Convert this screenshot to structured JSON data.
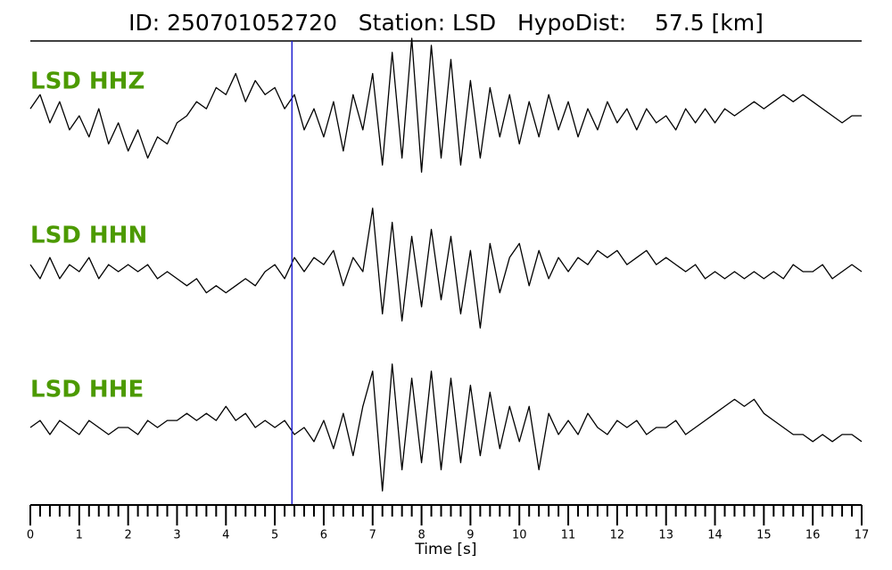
{
  "chart_data": {
    "type": "line",
    "title": "ID: 250701052720   Station: LSD   HypoDist:    57.5 [km]",
    "xlabel": "Time [s]",
    "xlim": [
      0,
      17
    ],
    "xticks": [
      0,
      1,
      2,
      3,
      4,
      5,
      6,
      7,
      8,
      9,
      10,
      11,
      12,
      13,
      14,
      15,
      16,
      17
    ],
    "minor_xticks": [
      0.2,
      0.4,
      0.6,
      0.8,
      1.2,
      1.4,
      1.6,
      1.8,
      2.2,
      2.4,
      2.6,
      2.8,
      3.2,
      3.4,
      3.6,
      3.8,
      4.2,
      4.4,
      4.6,
      4.8,
      5.2,
      5.4,
      5.6,
      5.8,
      6.2,
      6.4,
      6.6,
      6.8,
      7.2,
      7.4,
      7.6,
      7.8,
      8.2,
      8.4,
      8.6,
      8.8,
      9.2,
      9.4,
      9.6,
      9.8,
      10.2,
      10.4,
      10.6,
      10.8,
      11.2,
      11.4,
      11.6,
      11.8,
      12.2,
      12.4,
      12.6,
      12.8,
      13.2,
      13.4,
      13.6,
      13.8,
      14.2,
      14.4,
      14.6,
      14.8,
      15.2,
      15.4,
      15.6,
      15.8,
      16.2,
      16.4,
      16.6,
      16.8
    ],
    "ylim": [
      -1.1,
      1.1
    ],
    "label_color": "#4c9a00",
    "marker": {
      "value": 5.35,
      "color": "#1f1fd0"
    },
    "x": [
      0,
      0.2,
      0.4,
      0.6,
      0.8,
      1,
      1.2,
      1.4,
      1.6,
      1.8,
      2,
      2.2,
      2.4,
      2.6,
      2.8,
      3,
      3.2,
      3.4,
      3.6,
      3.8,
      4,
      4.2,
      4.4,
      4.6,
      4.8,
      5,
      5.2,
      5.4,
      5.6,
      5.8,
      6,
      6.2,
      6.4,
      6.6,
      6.8,
      7,
      7.2,
      7.4,
      7.6,
      7.8,
      8,
      8.2,
      8.4,
      8.6,
      8.8,
      9,
      9.2,
      9.4,
      9.6,
      9.8,
      10,
      10.2,
      10.4,
      10.6,
      10.8,
      11,
      11.2,
      11.4,
      11.6,
      11.8,
      12,
      12.2,
      12.4,
      12.6,
      12.8,
      13,
      13.2,
      13.4,
      13.6,
      13.8,
      14,
      14.2,
      14.4,
      14.6,
      14.8,
      15,
      15.2,
      15.4,
      15.6,
      15.8,
      16,
      16.2,
      16.4,
      16.6,
      16.8,
      17
    ],
    "series": [
      {
        "name": "LSD HHZ",
        "color": "#000000",
        "values": [
          0.1,
          0.3,
          -0.1,
          0.2,
          -0.2,
          0.0,
          -0.3,
          0.1,
          -0.4,
          -0.1,
          -0.5,
          -0.2,
          -0.6,
          -0.3,
          -0.4,
          -0.1,
          0.0,
          0.2,
          0.1,
          0.4,
          0.3,
          0.6,
          0.2,
          0.5,
          0.3,
          0.4,
          0.1,
          0.3,
          -0.2,
          0.1,
          -0.3,
          0.2,
          -0.5,
          0.3,
          -0.2,
          0.6,
          -0.7,
          0.9,
          -0.6,
          1.1,
          -0.8,
          1.0,
          -0.6,
          0.8,
          -0.7,
          0.5,
          -0.6,
          0.4,
          -0.3,
          0.3,
          -0.4,
          0.2,
          -0.3,
          0.3,
          -0.2,
          0.2,
          -0.3,
          0.1,
          -0.2,
          0.2,
          -0.1,
          0.1,
          -0.2,
          0.1,
          -0.1,
          0.0,
          -0.2,
          0.1,
          -0.1,
          0.1,
          -0.1,
          0.1,
          0.0,
          0.1,
          0.2,
          0.1,
          0.2,
          0.3,
          0.2,
          0.3,
          0.2,
          0.1,
          0.0,
          -0.1,
          0.0,
          0.0
        ]
      },
      {
        "name": "LSD HHN",
        "color": "#000000",
        "values": [
          0.1,
          -0.1,
          0.2,
          -0.1,
          0.1,
          0.0,
          0.2,
          -0.1,
          0.1,
          0.0,
          0.1,
          0.0,
          0.1,
          -0.1,
          0.0,
          -0.1,
          -0.2,
          -0.1,
          -0.3,
          -0.2,
          -0.3,
          -0.2,
          -0.1,
          -0.2,
          0.0,
          0.1,
          -0.1,
          0.2,
          0.0,
          0.2,
          0.1,
          0.3,
          -0.2,
          0.2,
          0.0,
          0.9,
          -0.6,
          0.7,
          -0.7,
          0.5,
          -0.5,
          0.6,
          -0.4,
          0.5,
          -0.6,
          0.3,
          -0.8,
          0.4,
          -0.3,
          0.2,
          0.4,
          -0.2,
          0.3,
          -0.1,
          0.2,
          0.0,
          0.2,
          0.1,
          0.3,
          0.2,
          0.3,
          0.1,
          0.2,
          0.3,
          0.1,
          0.2,
          0.1,
          0.0,
          0.1,
          -0.1,
          0.0,
          -0.1,
          0.0,
          -0.1,
          0.0,
          -0.1,
          0.0,
          -0.1,
          0.1,
          0.0,
          0.0,
          0.1,
          -0.1,
          0.0,
          0.1,
          0.0
        ]
      },
      {
        "name": "LSD HHE",
        "color": "#000000",
        "values": [
          0.0,
          0.1,
          -0.1,
          0.1,
          0.0,
          -0.1,
          0.1,
          0.0,
          -0.1,
          0.0,
          0.0,
          -0.1,
          0.1,
          0.0,
          0.1,
          0.1,
          0.2,
          0.1,
          0.2,
          0.1,
          0.3,
          0.1,
          0.2,
          0.0,
          0.1,
          0.0,
          0.1,
          -0.1,
          0.0,
          -0.2,
          0.1,
          -0.3,
          0.2,
          -0.4,
          0.3,
          0.8,
          -0.9,
          0.9,
          -0.6,
          0.7,
          -0.5,
          0.8,
          -0.6,
          0.7,
          -0.5,
          0.6,
          -0.4,
          0.5,
          -0.3,
          0.3,
          -0.2,
          0.3,
          -0.6,
          0.2,
          -0.1,
          0.1,
          -0.1,
          0.2,
          0.0,
          -0.1,
          0.1,
          0.0,
          0.1,
          -0.1,
          0.0,
          0.0,
          0.1,
          -0.1,
          0.0,
          0.1,
          0.2,
          0.3,
          0.4,
          0.3,
          0.4,
          0.2,
          0.1,
          0.0,
          -0.1,
          -0.1,
          -0.2,
          -0.1,
          -0.2,
          -0.1,
          -0.1,
          -0.2
        ]
      }
    ]
  }
}
